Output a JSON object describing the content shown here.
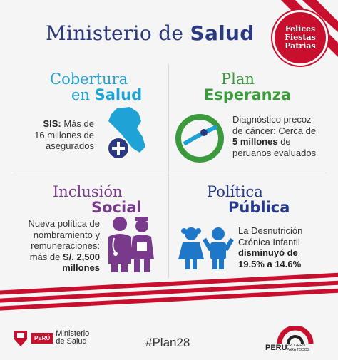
{
  "header": {
    "title_regular": "Ministerio de ",
    "title_bold": "Salud"
  },
  "ribbon": {
    "line1": "Felices",
    "line2": "Fiestas",
    "line3": "Patrias"
  },
  "quadrants": {
    "cobertura": {
      "title_line1": "Cobertura",
      "title_line2_regular": "en ",
      "title_line2_bold": "Salud",
      "text_bold": "SIS:",
      "text_rest1": " Más de",
      "text_line2": "16 millones de",
      "text_line3": "asegurados"
    },
    "plan": {
      "title_line1": "Plan",
      "title_line2": "Esperanza",
      "text_line1": "Diagnóstico precoz",
      "text_line2": "de cáncer: Cerca de",
      "text_bold": "5 millones",
      "text_line3_rest": " de",
      "text_line4": "peruanos evaluados"
    },
    "inclusion": {
      "title_line1": "Inclusión",
      "title_line2": "Social",
      "text_line1": "Nueva política de",
      "text_line2": "nombramiento y",
      "text_line3": "remuneraciones:",
      "text_line4_regular": "más de ",
      "text_line4_bold": "S/. 2,500",
      "text_line5_bold": "millones"
    },
    "politica": {
      "title_line1": "Política",
      "title_line2": "Pública",
      "text_line1": "La Desnutrición",
      "text_line2": "Crónica Infantil",
      "text_line3_bold": "disminuyó de",
      "text_line4_bold": "19.5% a 14.6%"
    }
  },
  "footer": {
    "peru_label": "PERÚ",
    "ministerio_line1": "Ministerio",
    "ministerio_line2": "de Salud",
    "hashtag": "#Plan28",
    "progreso_main": "PERU",
    "progreso_sub1": "PROGRESO",
    "progreso_sub2": "PARA TODOS"
  },
  "colors": {
    "navy": "#2b3a80",
    "cyan": "#1fa3d6",
    "green": "#3a9a3c",
    "purple": "#7a3a8c",
    "red": "#c8102e"
  }
}
